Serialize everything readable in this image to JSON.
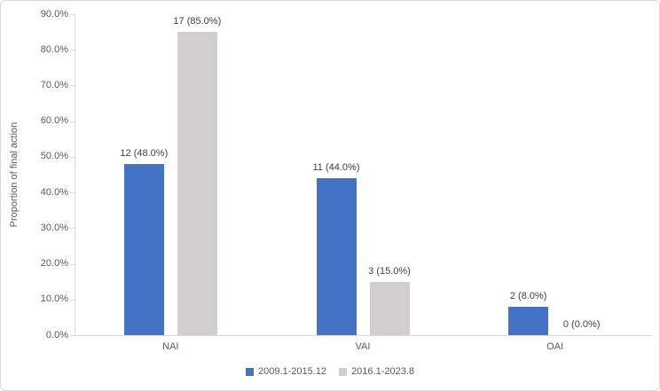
{
  "chart_data": {
    "type": "bar",
    "title": "",
    "ylabel": "Proportion of final action",
    "xlabel": "",
    "categories": [
      "NAI",
      "VAI",
      "OAI"
    ],
    "series": [
      {
        "name": "2009.1-2015.12",
        "color": "#4472c4",
        "values": [
          48.0,
          44.0,
          8.0
        ],
        "counts": [
          12,
          11,
          2
        ],
        "labels": [
          "12 (48.0%)",
          "11 (44.0%)",
          "2 (8.0%)"
        ]
      },
      {
        "name": "2016.1-2023.8",
        "color": "#d0cece",
        "values": [
          85.0,
          15.0,
          0.0
        ],
        "counts": [
          17,
          3,
          0
        ],
        "labels": [
          "17 (85.0%)",
          "3 (15.0%)",
          "0 (0.0%)"
        ]
      }
    ],
    "y_ticks": [
      "0.0%",
      "10.0%",
      "20.0%",
      "30.0%",
      "40.0%",
      "50.0%",
      "60.0%",
      "70.0%",
      "80.0%",
      "90.0%"
    ],
    "ylim": [
      0,
      90
    ],
    "grid": false,
    "legend_position": "bottom",
    "colors": {
      "axis_line": "#d9d9d9",
      "axis_text": "#595959",
      "data_label_text": "#404040",
      "background": "#ffffff"
    }
  }
}
